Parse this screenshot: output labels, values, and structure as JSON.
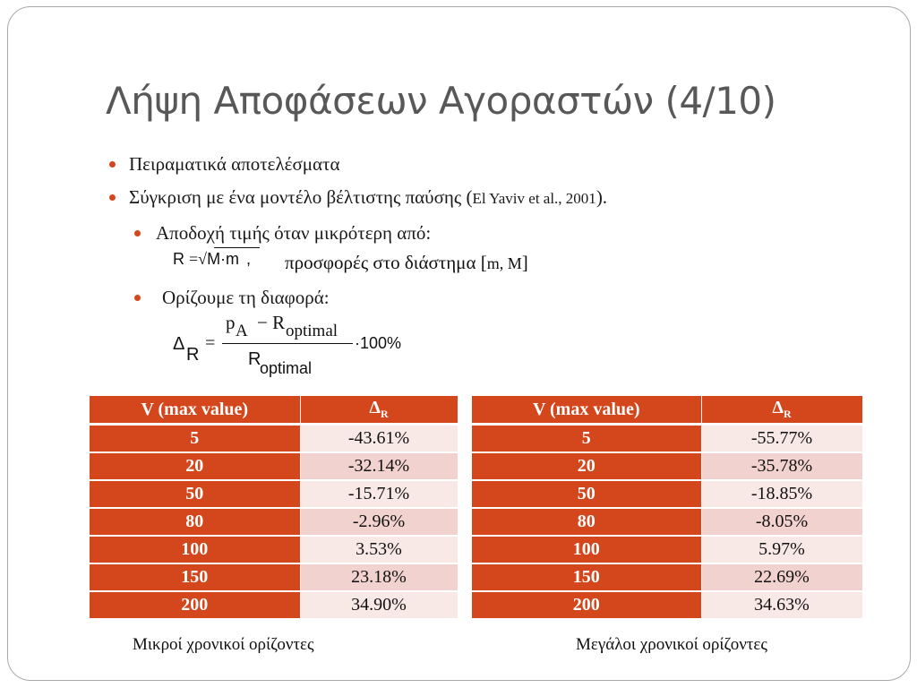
{
  "title": "Λήψη Αποφάσεων Αγοραστών (4/10)",
  "bullets": {
    "b1": "Πειραματικά αποτελέσματα",
    "b2_text": "Σύγκριση με ένα μοντέλο βέλτιστης παύσης (",
    "b2_ref": "El Yaviv et al., 2001",
    "b2_end": ").",
    "b3": "Αποδοχή τιμής όταν μικρότερη από:",
    "b3_formula_lhs": "R",
    "b3_formula_eq": "=",
    "b3_formula_root": "√",
    "b3_formula_rhs": "M·m",
    "b3_formula_comma": ",",
    "b3_text_pre": "προσφορές στο διάστημα [",
    "b3_range": "m, M",
    "b3_text_post": "]",
    "b4": "Ορίζουμε τη διαφορά:"
  },
  "formula2": {
    "lhs": "Δ",
    "lhs_sub": "R",
    "eq": "=",
    "num_p": "p",
    "num_p_sub": "A",
    "num_minus": "− R",
    "num_r_sub": "optimal",
    "den_r": "R",
    "den_r_sub": "optimal",
    "tail": "·100%"
  },
  "tables": [
    {
      "header_v": "V (max value)",
      "header_d": "Δ",
      "header_d_sub": "R",
      "rows": [
        {
          "v": "5",
          "d": "-43.61%"
        },
        {
          "v": "20",
          "d": "-32.14%"
        },
        {
          "v": "50",
          "d": "-15.71%"
        },
        {
          "v": "80",
          "d": "-2.96%"
        },
        {
          "v": "100",
          "d": "3.53%"
        },
        {
          "v": "150",
          "d": "23.18%"
        },
        {
          "v": "200",
          "d": "34.90%"
        }
      ],
      "caption": "Μικροί χρονικοί ορίζοντες"
    },
    {
      "header_v": "V (max value)",
      "header_d": "Δ",
      "header_d_sub": "R",
      "rows": [
        {
          "v": "5",
          "d": "-55.77%"
        },
        {
          "v": "20",
          "d": "-35.78%"
        },
        {
          "v": "50",
          "d": "-18.85%"
        },
        {
          "v": "80",
          "d": "-8.05%"
        },
        {
          "v": "100",
          "d": "5.97%"
        },
        {
          "v": "150",
          "d": "22.69%"
        },
        {
          "v": "200",
          "d": "34.63%"
        }
      ],
      "caption": "Μεγάλοι χρονικοί ορίζοντες"
    }
  ],
  "colors": {
    "accent": "#d4471d",
    "row_light": "#f8e8e6",
    "row_dark": "#f1d2ce",
    "title": "#585858"
  }
}
